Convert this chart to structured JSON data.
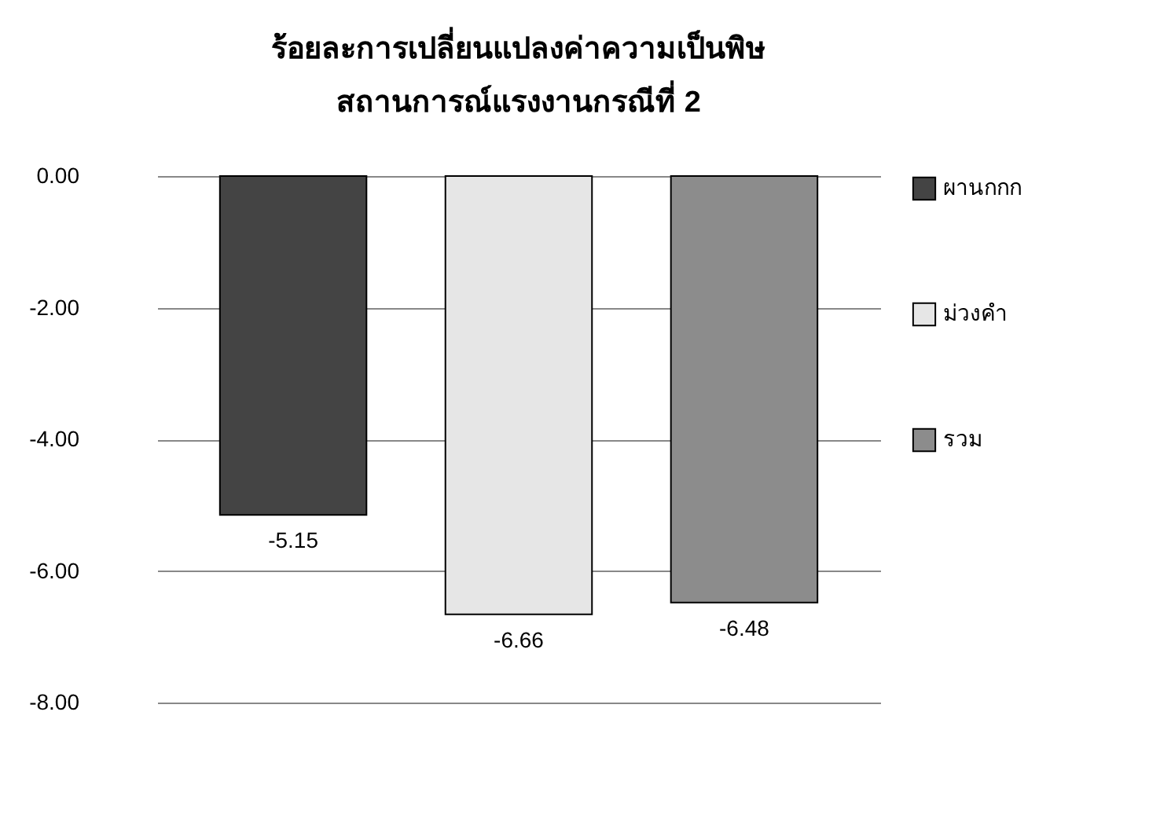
{
  "chart_data": {
    "type": "bar",
    "title": [
      "ร้อยละการเปลี่ยนแปลงค่าความเป็นพิษ",
      "สถานการณ์แรงงานกรณีที่ 2"
    ],
    "categories": [
      null
    ],
    "series": [
      {
        "name": "ผานกกก",
        "color": "#444444",
        "values": [
          -5.15
        ]
      },
      {
        "name": "ม่วงคำ",
        "color": "#e6e6e6",
        "values": [
          -6.66
        ]
      },
      {
        "name": "รวม",
        "color": "#8c8c8c",
        "values": [
          -6.48
        ]
      }
    ],
    "ylim": [
      -8,
      0
    ],
    "yticks": [
      {
        "value": 0,
        "label": "0.00"
      },
      {
        "value": -2,
        "label": "-2.00"
      },
      {
        "value": -4,
        "label": "-4.00"
      },
      {
        "value": -6,
        "label": "-6.00"
      },
      {
        "value": -8,
        "label": "-8.00"
      }
    ],
    "grid": "y",
    "legend": "right",
    "data_labels": true
  }
}
